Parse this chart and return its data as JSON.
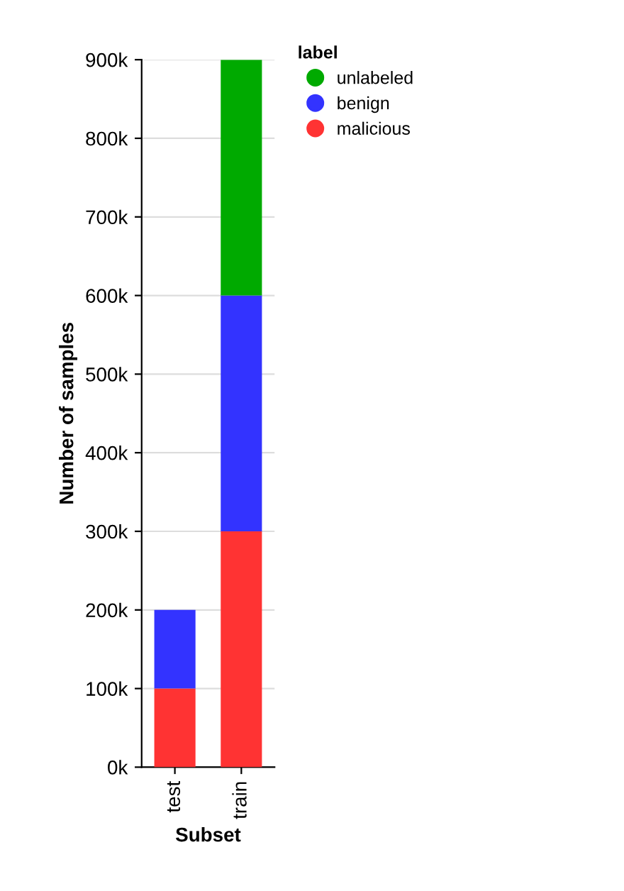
{
  "chart_data": {
    "type": "bar",
    "stacked": true,
    "xlabel": "Subset",
    "ylabel": "Number of samples",
    "legend_title": "label",
    "legend": "top right",
    "grid": "y",
    "categories": [
      "test",
      "train"
    ],
    "series": [
      {
        "name": "malicious",
        "color": "#ff3333",
        "values": [
          100000,
          300000
        ]
      },
      {
        "name": "benign",
        "color": "#3333ff",
        "values": [
          100000,
          300000
        ]
      },
      {
        "name": "unlabeled",
        "color": "#00aa00",
        "values": [
          0,
          300000
        ]
      }
    ],
    "ylim": [
      0,
      900000
    ],
    "yticks": [
      {
        "value": 0,
        "label": "0k"
      },
      {
        "value": 100000,
        "label": "100k"
      },
      {
        "value": 200000,
        "label": "200k"
      },
      {
        "value": 300000,
        "label": "300k"
      },
      {
        "value": 400000,
        "label": "400k"
      },
      {
        "value": 500000,
        "label": "500k"
      },
      {
        "value": 600000,
        "label": "600k"
      },
      {
        "value": 700000,
        "label": "700k"
      },
      {
        "value": 800000,
        "label": "800k"
      },
      {
        "value": 900000,
        "label": "900k"
      }
    ]
  }
}
